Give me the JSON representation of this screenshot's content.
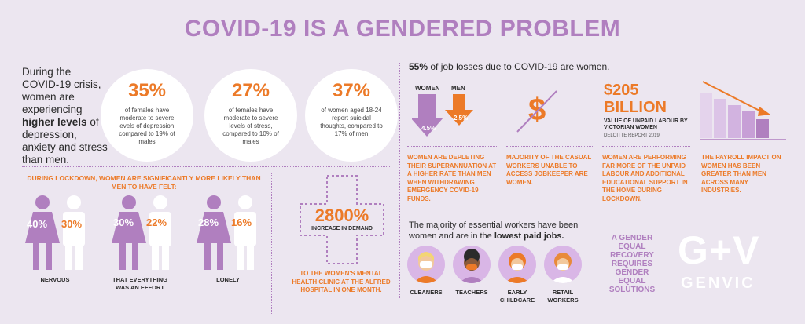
{
  "title": "COVID-19 IS A GENDERED PROBLEM",
  "intro": {
    "line1": "During the COVID-19 crisis, women are experiencing",
    "bold": "higher levels",
    "line2": "of depression, anxiety and stress than men."
  },
  "stats": [
    {
      "pct": "35%",
      "desc": "of females have moderate to severe levels of depression, compared to 19% of males"
    },
    {
      "pct": "27%",
      "desc": "of females have moderate to severe levels of stress, compared to 10% of males"
    },
    {
      "pct": "37%",
      "desc": "of women aged 18-24 report suicidal thoughts, compared to 17% of men"
    }
  ],
  "lockdown": {
    "heading": "DURING LOCKDOWN, WOMEN ARE SIGNIFICANTLY MORE LIKELY THAN MEN TO HAVE FELT:",
    "items": [
      {
        "female": "40%",
        "male": "30%",
        "label": "NERVOUS"
      },
      {
        "female": "30%",
        "male": "22%",
        "label": "THAT EVERYTHING WAS AN EFFORT"
      },
      {
        "female": "28%",
        "male": "16%",
        "label": "LONELY"
      }
    ]
  },
  "clinic": {
    "value": "2800%",
    "sub": "INCREASE IN DEMAND",
    "caption": "TO THE WOMEN'S MENTAL HEALTH CLINIC AT THE ALFRED HOSPITAL IN ONE MONTH."
  },
  "jobs": {
    "pct": "55%",
    "text": "of job losses due to COVID-19 are women."
  },
  "super": {
    "women_label": "WOMEN",
    "men_label": "MEN",
    "women_pct": "4.5%",
    "men_pct": "2.5%",
    "caption": "WOMEN ARE DEPLETING THEIR SUPERANNUATION AT A HIGHER RATE THAN MEN WHEN WITHDRAWING EMERGENCY COVID-19 FUNDS."
  },
  "jobkeeper": {
    "symbol": "$",
    "caption": "MAJORITY OF THE CASUAL WORKERS UNABLE TO ACCESS JOBKEEPER ARE WOMEN."
  },
  "unpaid": {
    "amount": "$205",
    "unit": "BILLION",
    "sub": "VALUE OF UNPAID LABOUR BY VICTORIAN WOMEN",
    "source": "DELOITTE REPORT 2019",
    "caption": "WOMEN ARE PERFORMING FAR MORE OF THE UNPAID LABOUR AND ADDITIONAL EDUCATIONAL SUPPORT IN THE HOME DURING LOCKDOWN."
  },
  "payroll": {
    "caption": "THE PAYROLL IMPACT ON WOMEN HAS BEEN GREATER THAN MEN ACROSS MANY INDUSTRIES."
  },
  "essential": {
    "text": "The majority of essential workers have been women and are in the",
    "bold": "lowest paid jobs.",
    "workers": [
      "CLEANERS",
      "TEACHERS",
      "EARLY CHILDCARE",
      "RETAIL WORKERS"
    ]
  },
  "recovery": "A GENDER EQUAL RECOVERY REQUIRES GENDER EQUAL SOLUTIONS",
  "logo": {
    "mark": "G+V",
    "name": "GENVIC"
  },
  "colors": {
    "purple": "#b07fbf",
    "orange": "#ec7a28",
    "background": "#ece6f0"
  }
}
